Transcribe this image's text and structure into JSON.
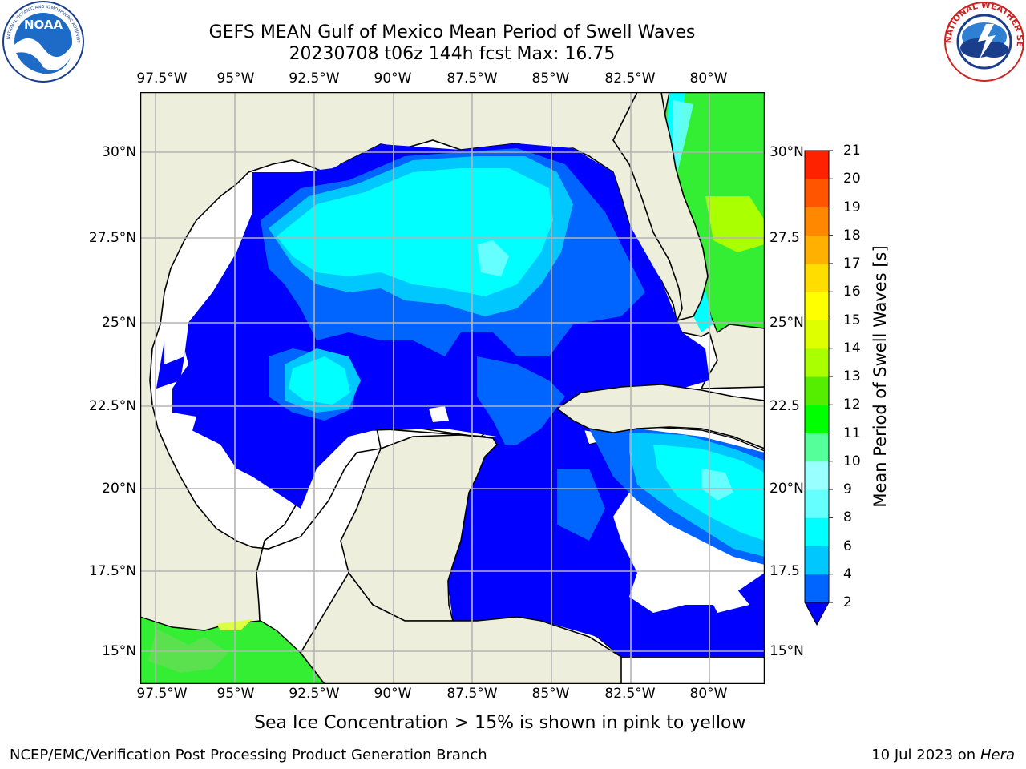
{
  "header": {
    "title_line1": "GEFS MEAN Gulf of Mexico Mean Period of Swell Waves",
    "title_line2": "20230708 t06z 144h fcst   Max: 16.75"
  },
  "logos": {
    "left": {
      "name": "NOAA",
      "ring_text": "NATIONAL OCEANIC AND ATMOSPHERIC ADMINISTRATION · U.S. DEPARTMENT OF COMMERCE"
    },
    "right": {
      "name": "NATIONAL WEATHER SERVICE"
    }
  },
  "axes": {
    "lon_labels": [
      "97.5°W",
      "95°W",
      "92.5°W",
      "90°W",
      "87.5°W",
      "85°W",
      "82.5°W",
      "80°W"
    ],
    "lat_labels_left": [
      "30°N",
      "27.5°N",
      "25°N",
      "22.5°N",
      "20°N",
      "17.5°N",
      "15°N"
    ],
    "lat_labels_right": [
      "30°N",
      "27.5",
      "25°N",
      "22.5",
      "20°N",
      "17.5",
      "15°N"
    ],
    "lon_range": [
      -98,
      -78.3
    ],
    "lat_range": [
      14,
      31.8
    ]
  },
  "colorbar": {
    "label": "Mean Period of Swell Waves [s]",
    "ticks": [
      "2",
      "4",
      "6",
      "8",
      "9",
      "10",
      "11",
      "12",
      "13",
      "14",
      "15",
      "16",
      "17",
      "18",
      "19",
      "20",
      "21"
    ],
    "levels": [
      2,
      4,
      6,
      8,
      9,
      10,
      11,
      12,
      13,
      14,
      15,
      16,
      17,
      18,
      19,
      20,
      21
    ],
    "colors": [
      "#0064ff",
      "#00c8ff",
      "#00ffff",
      "#66ffff",
      "#99ffff",
      "#55ff99",
      "#00ff00",
      "#55ee00",
      "#aaff00",
      "#ddff00",
      "#ffff00",
      "#ffdd00",
      "#ffb000",
      "#ff8800",
      "#ff5500",
      "#ff2200"
    ],
    "under_color": "#0000ff",
    "extend": "min"
  },
  "map_colors": {
    "land": "#eeeedd",
    "no_data": "#ffffff",
    "grid": "#b4b4b4"
  },
  "note": "Sea Ice Concentration > 15% is shown in pink to yellow",
  "footer": {
    "left": "NCEP/EMC/Verification Post Processing Product Generation Branch",
    "right_prefix": "10 Jul 2023 on ",
    "right_italic": "Hera"
  }
}
